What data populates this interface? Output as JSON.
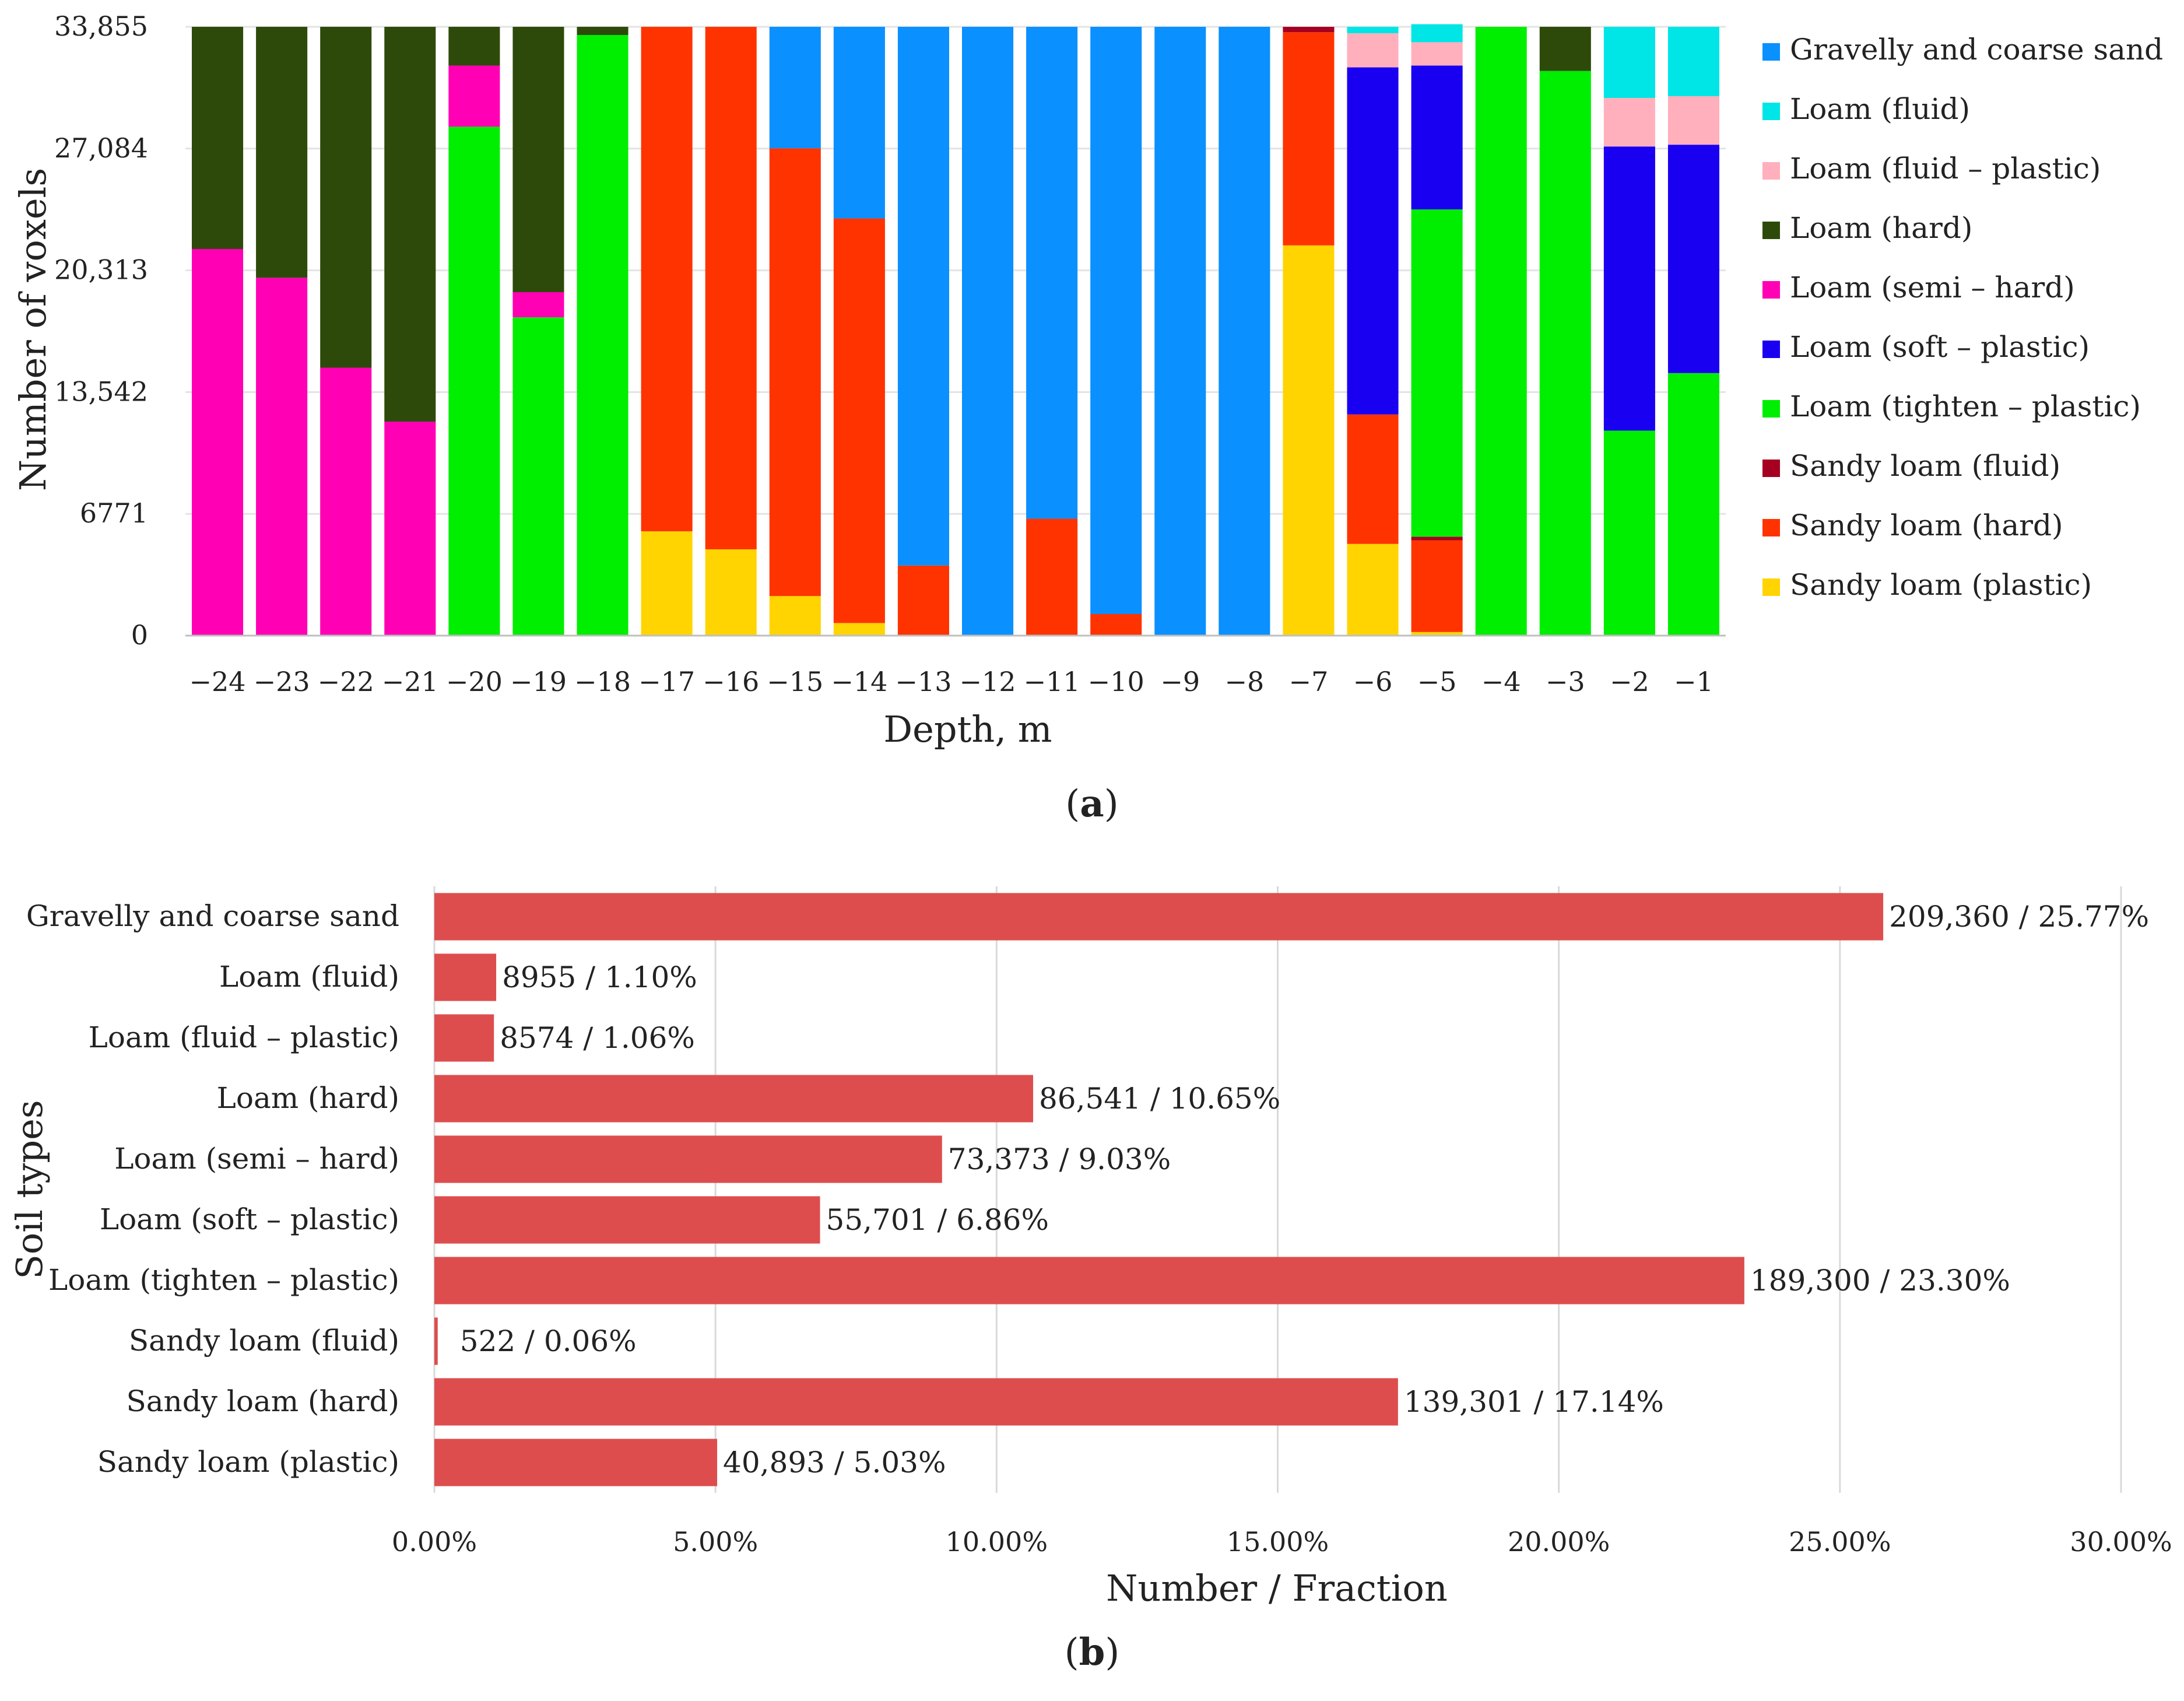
{
  "chart_data": [
    {
      "type": "bar",
      "stacked": true,
      "panel_label_prefix": "(",
      "panel_label_letter": "a",
      "panel_label_suffix": ")",
      "title": "",
      "xlabel": "Depth, m",
      "ylabel": "Number of voxels",
      "ylim": [
        0,
        33855
      ],
      "yticks": [
        0,
        6771,
        13542,
        20313,
        27084,
        33855
      ],
      "ytick_labels": [
        "0",
        "6771",
        "13,542",
        "20,313",
        "27,084",
        "33,855"
      ],
      "categories": [
        "−24",
        "−23",
        "−22",
        "−21",
        "−20",
        "−19",
        "−18",
        "−17",
        "−16",
        "−15",
        "−14",
        "−13",
        "−12",
        "−11",
        "−10",
        "−9",
        "−8",
        "−7",
        "−6",
        "−5",
        "−4",
        "−3",
        "−2",
        "−1"
      ],
      "legend_position": "right",
      "series": [
        {
          "name": "Sandy loam (plastic)",
          "color": "#FFD400",
          "values": [
            0,
            0,
            0,
            0,
            0,
            0,
            0,
            5800,
            4800,
            2200,
            700,
            0,
            0,
            0,
            0,
            0,
            0,
            21700,
            5100,
            200,
            0,
            0,
            0,
            0
          ]
        },
        {
          "name": "Sandy loam (hard)",
          "color": "#FF3300",
          "values": [
            0,
            0,
            0,
            0,
            0,
            0,
            0,
            28055,
            29055,
            24900,
            22500,
            3900,
            0,
            6500,
            1200,
            0,
            0,
            11855,
            7200,
            5100,
            0,
            0,
            0,
            0
          ]
        },
        {
          "name": "Sandy loam (fluid)",
          "color": "#A50021",
          "values": [
            0,
            0,
            0,
            0,
            0,
            0,
            0,
            0,
            0,
            0,
            0,
            0,
            0,
            0,
            0,
            0,
            0,
            300,
            0,
            200,
            0,
            0,
            0,
            0
          ]
        },
        {
          "name": "Loam (tighten – plastic)",
          "color": "#00EE00",
          "values": [
            0,
            0,
            0,
            0,
            28300,
            17700,
            33400,
            0,
            0,
            0,
            0,
            0,
            0,
            0,
            0,
            0,
            0,
            0,
            0,
            18200,
            33855,
            31400,
            11400,
            14600
          ]
        },
        {
          "name": "Loam (soft – plastic)",
          "color": "#1A00F0",
          "values": [
            0,
            0,
            0,
            0,
            0,
            0,
            0,
            0,
            0,
            0,
            0,
            0,
            0,
            0,
            0,
            0,
            0,
            0,
            19300,
            8000,
            0,
            0,
            15800,
            12700
          ]
        },
        {
          "name": "Loam (semi – hard)",
          "color": "#FF00B4",
          "values": [
            21500,
            19900,
            14900,
            11900,
            3400,
            1400,
            0,
            0,
            0,
            0,
            0,
            0,
            0,
            0,
            0,
            0,
            0,
            0,
            0,
            0,
            0,
            0,
            0,
            0
          ]
        },
        {
          "name": "Loam (hard)",
          "color": "#2E4A0A",
          "values": [
            12355,
            13955,
            18955,
            21955,
            2155,
            14755,
            455,
            0,
            0,
            0,
            0,
            0,
            0,
            0,
            0,
            0,
            0,
            0,
            0,
            0,
            0,
            2455,
            0,
            0
          ]
        },
        {
          "name": "Loam (fluid – plastic)",
          "color": "#FFB0BC",
          "values": [
            0,
            0,
            0,
            0,
            0,
            0,
            0,
            0,
            0,
            0,
            0,
            0,
            0,
            0,
            0,
            0,
            0,
            0,
            1900,
            1300,
            0,
            0,
            2700,
            2700
          ]
        },
        {
          "name": "Loam (fluid)",
          "color": "#00E5E5",
          "values": [
            0,
            0,
            0,
            0,
            0,
            0,
            0,
            0,
            0,
            0,
            0,
            0,
            0,
            0,
            0,
            0,
            0,
            0,
            355,
            1000,
            0,
            0,
            3955,
            3855
          ]
        },
        {
          "name": "Gravelly and coarse sand",
          "color": "#0A90FF",
          "values": [
            0,
            0,
            0,
            0,
            0,
            0,
            0,
            0,
            0,
            6755,
            10655,
            29955,
            33855,
            27355,
            32655,
            33855,
            33855,
            0,
            0,
            0,
            0,
            0,
            0,
            0
          ]
        }
      ],
      "legend_order": [
        "Gravelly and coarse sand",
        "Loam (fluid)",
        "Loam (fluid – plastic)",
        "Loam (hard)",
        "Loam (semi – hard)",
        "Loam (soft – plastic)",
        "Loam (tighten – plastic)",
        "Sandy loam (fluid)",
        "Sandy loam (hard)",
        "Sandy loam (plastic)"
      ]
    },
    {
      "type": "bar",
      "orientation": "horizontal",
      "panel_label_prefix": "(",
      "panel_label_letter": "b",
      "panel_label_suffix": ")",
      "title": "",
      "xlabel": "Number / Fraction",
      "ylabel": "Soil types",
      "xlim": [
        0,
        30
      ],
      "xticks": [
        0,
        5,
        10,
        15,
        20,
        25,
        30
      ],
      "xtick_labels": [
        "0.00%",
        "5.00%",
        "10.00%",
        "15.00%",
        "20.00%",
        "25.00%",
        "30.00%"
      ],
      "grid": true,
      "bar_color": "#DE4D4D",
      "categories": [
        "Gravelly and coarse sand",
        "Loam (fluid)",
        "Loam (fluid – plastic)",
        "Loam (hard)",
        "Loam (semi – hard)",
        "Loam (soft – plastic)",
        "Loam (tighten – plastic)",
        "Sandy loam (fluid)",
        "Sandy loam (hard)",
        "Sandy loam (plastic)"
      ],
      "values": [
        25.77,
        1.1,
        1.06,
        10.65,
        9.03,
        6.86,
        23.3,
        0.06,
        17.14,
        5.03
      ],
      "counts": [
        209360,
        8955,
        8574,
        86541,
        73373,
        55701,
        189300,
        522,
        139301,
        40893
      ],
      "data_labels": [
        "209,360 / 25.77%",
        "8955 / 1.10%",
        "8574 / 1.06%",
        "86,541 / 10.65%",
        "73,373 / 9.03%",
        "55,701 / 6.86%",
        "189,300 / 23.30%",
        "522 / 0.06%",
        "139,301 / 17.14%",
        "40,893 / 5.03%"
      ]
    }
  ]
}
